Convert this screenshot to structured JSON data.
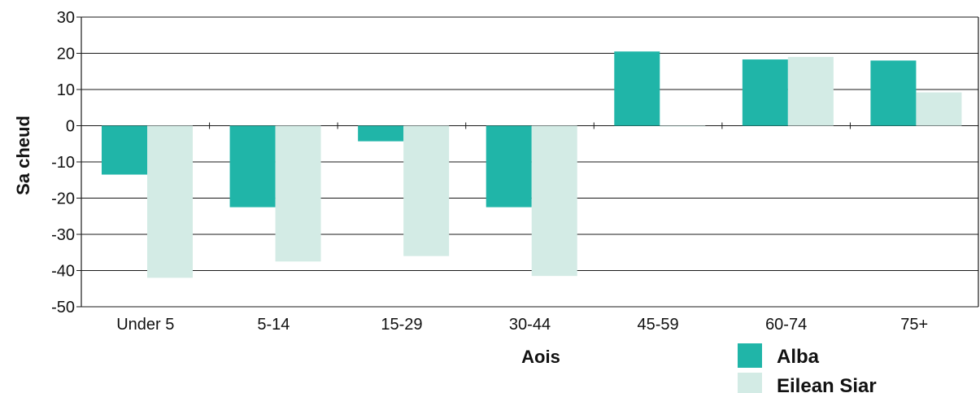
{
  "chart_data": {
    "type": "bar",
    "title": "",
    "xlabel": "Aois",
    "ylabel": "Sa cheud",
    "ylim": [
      -50,
      30
    ],
    "yticks": [
      30,
      20,
      10,
      0,
      -10,
      -20,
      -30,
      -40,
      -50
    ],
    "grid": true,
    "legend_position": "bottom-right",
    "categories": [
      "Under 5",
      "5-14",
      "15-29",
      "30-44",
      "45-59",
      "60-74",
      "75+"
    ],
    "series": [
      {
        "name": "Alba",
        "color": "#20b5a8",
        "values": [
          -13.5,
          -22.5,
          -4.3,
          -22.5,
          20.5,
          18.3,
          18
        ]
      },
      {
        "name": "Eilean Siar",
        "color": "#d3ebe5",
        "values": [
          -42,
          -37.5,
          -36,
          -41.5,
          0,
          19,
          9.2
        ]
      }
    ]
  }
}
